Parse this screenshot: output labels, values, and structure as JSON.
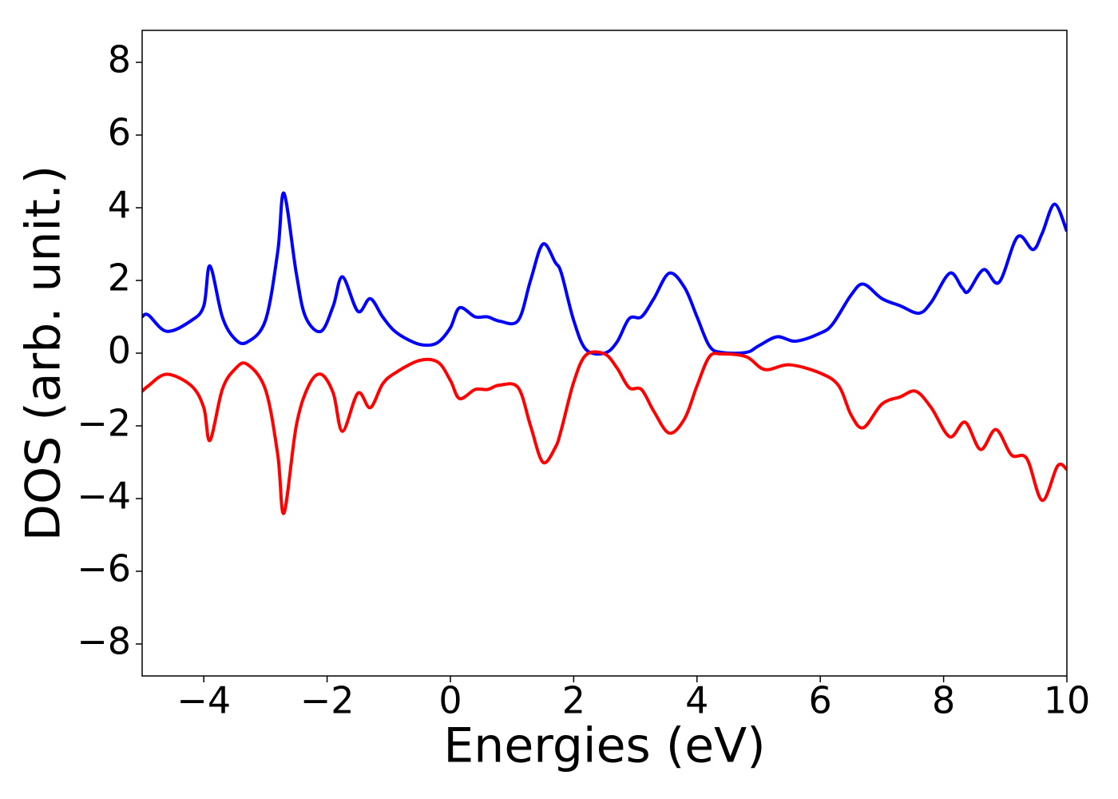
{
  "chart_data": {
    "type": "line",
    "xlabel": "Energies (eV)",
    "ylabel": "DOS (arb. unit.)",
    "xlim": [
      -5,
      10
    ],
    "ylim": [
      -8.88,
      8.88
    ],
    "xticks": [
      {
        "value": -4,
        "label": "−4"
      },
      {
        "value": -2,
        "label": "−2"
      },
      0,
      2,
      4,
      6,
      8,
      10
    ],
    "yticks": [
      {
        "value": -8,
        "label": "−8"
      },
      {
        "value": -6,
        "label": "−6"
      },
      {
        "value": -4,
        "label": "−4"
      },
      {
        "value": -2,
        "label": "−2"
      },
      0,
      2,
      4,
      6,
      8
    ],
    "grid": false,
    "series": [
      {
        "color": "#0000ff",
        "x": [
          -5,
          -4.9,
          -4.6,
          -4.2,
          -4.0,
          -3.9,
          -3.7,
          -3.5,
          -3.3,
          -3.0,
          -2.8,
          -2.7,
          -2.5,
          -2.35,
          -2.1,
          -1.9,
          -1.75,
          -1.5,
          -1.3,
          -1.1,
          -0.9,
          -0.6,
          -0.4,
          -0.2,
          0.0,
          0.15,
          0.4,
          0.6,
          0.8,
          1.1,
          1.3,
          1.5,
          1.7,
          1.8,
          2.0,
          2.2,
          2.5,
          2.7,
          2.9,
          3.1,
          3.3,
          3.55,
          3.8,
          4.0,
          4.2,
          4.4,
          4.8,
          5.0,
          5.3,
          5.6,
          6.0,
          6.2,
          6.5,
          6.7,
          7.0,
          7.3,
          7.6,
          7.8,
          8.1,
          8.3,
          8.4,
          8.65,
          8.9,
          9.2,
          9.45,
          9.6,
          9.8,
          10.0
        ],
        "values": [
          1.0,
          1.05,
          0.6,
          0.9,
          1.3,
          2.4,
          1.0,
          0.4,
          0.3,
          0.9,
          2.8,
          4.4,
          2.2,
          1.0,
          0.6,
          1.3,
          2.1,
          1.15,
          1.5,
          1.0,
          0.6,
          0.3,
          0.22,
          0.3,
          0.7,
          1.25,
          1.0,
          1.0,
          0.88,
          0.9,
          2.0,
          3.0,
          2.5,
          2.2,
          0.9,
          0.1,
          0.0,
          0.3,
          0.95,
          1.0,
          1.5,
          2.2,
          1.8,
          1.0,
          0.2,
          0.02,
          0.02,
          0.2,
          0.45,
          0.33,
          0.55,
          0.8,
          1.6,
          1.9,
          1.5,
          1.3,
          1.1,
          1.4,
          2.2,
          1.8,
          1.7,
          2.3,
          1.95,
          3.2,
          2.85,
          3.3,
          4.1,
          3.35
        ]
      },
      {
        "color": "#ff0000",
        "x": [
          -5,
          -4.9,
          -4.6,
          -4.2,
          -4.0,
          -3.9,
          -3.7,
          -3.5,
          -3.3,
          -3.0,
          -2.8,
          -2.7,
          -2.5,
          -2.3,
          -2.1,
          -1.9,
          -1.75,
          -1.5,
          -1.3,
          -1.1,
          -0.9,
          -0.5,
          -0.2,
          0.0,
          0.15,
          0.4,
          0.6,
          0.8,
          1.1,
          1.3,
          1.5,
          1.7,
          1.8,
          2.0,
          2.2,
          2.5,
          2.7,
          2.9,
          3.1,
          3.3,
          3.55,
          3.8,
          4.0,
          4.2,
          4.4,
          4.8,
          5.1,
          5.5,
          6.0,
          6.3,
          6.5,
          6.7,
          7.0,
          7.3,
          7.55,
          7.8,
          8.1,
          8.35,
          8.6,
          8.85,
          9.1,
          9.35,
          9.6,
          9.85,
          10.0
        ],
        "values": [
          -1.05,
          -0.9,
          -0.58,
          -0.9,
          -1.5,
          -2.4,
          -1.0,
          -0.45,
          -0.3,
          -1.0,
          -2.8,
          -4.4,
          -2.0,
          -0.9,
          -0.58,
          -1.1,
          -2.15,
          -1.1,
          -1.5,
          -0.85,
          -0.55,
          -0.2,
          -0.25,
          -0.75,
          -1.25,
          -1.0,
          -1.0,
          -0.88,
          -0.95,
          -2.0,
          -3.0,
          -2.6,
          -2.1,
          -0.8,
          -0.05,
          -0.02,
          -0.4,
          -0.95,
          -1.0,
          -1.6,
          -2.2,
          -1.8,
          -0.9,
          -0.1,
          -0.02,
          -0.1,
          -0.45,
          -0.32,
          -0.55,
          -0.9,
          -1.7,
          -2.05,
          -1.4,
          -1.2,
          -1.05,
          -1.5,
          -2.3,
          -1.9,
          -2.65,
          -2.1,
          -2.8,
          -2.9,
          -4.05,
          -3.1,
          -3.2
        ]
      }
    ]
  }
}
